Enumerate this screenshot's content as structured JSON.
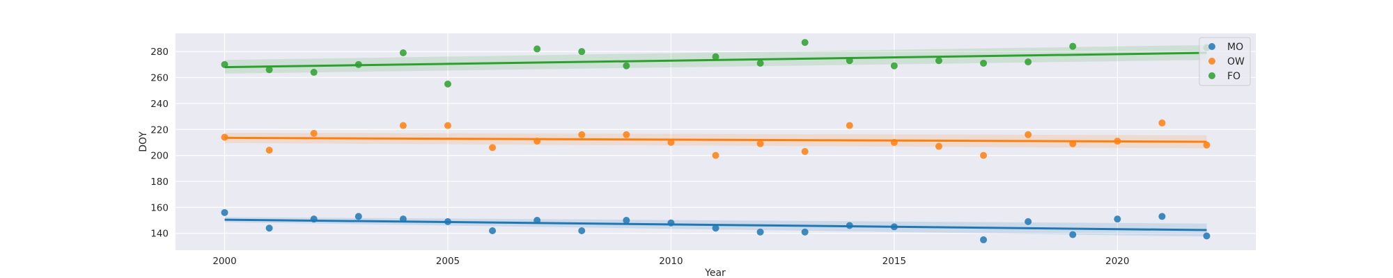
{
  "chart_data": {
    "type": "scatter",
    "xlabel": "Year",
    "ylabel": "DOY",
    "xlim": [
      1998.9,
      2023.1
    ],
    "ylim": [
      127,
      294
    ],
    "xticks": [
      2000,
      2005,
      2010,
      2015,
      2020
    ],
    "yticks": [
      140,
      160,
      180,
      200,
      220,
      240,
      260,
      280
    ],
    "grid": true,
    "legend_position": "top-right",
    "x": [
      2000,
      2001,
      2002,
      2003,
      2004,
      2005,
      2006,
      2007,
      2008,
      2009,
      2010,
      2011,
      2012,
      2013,
      2014,
      2015,
      2016,
      2017,
      2018,
      2019,
      2020,
      2021,
      2022
    ],
    "series": [
      {
        "name": "MO",
        "color": "#1f77b4",
        "points": [
          [
            2000,
            156
          ],
          [
            2001,
            144
          ],
          [
            2002,
            151
          ],
          [
            2003,
            153
          ],
          [
            2004,
            151
          ],
          [
            2005,
            149
          ],
          [
            2006,
            142
          ],
          [
            2007,
            150
          ],
          [
            2008,
            142
          ],
          [
            2009,
            150
          ],
          [
            2010,
            148
          ],
          [
            2011,
            144
          ],
          [
            2012,
            141
          ],
          [
            2013,
            141
          ],
          [
            2014,
            146
          ],
          [
            2015,
            145
          ],
          [
            2016,
            null
          ],
          [
            2017,
            135
          ],
          [
            2018,
            149
          ],
          [
            2019,
            139
          ],
          [
            2020,
            151
          ],
          [
            2021,
            153
          ],
          [
            2022,
            138
          ]
        ],
        "trend": [
          150.5,
          142.5
        ],
        "band": [
          [
            152.5,
            148.5
          ],
          [
            147.5,
            137.5
          ]
        ]
      },
      {
        "name": "OW",
        "color": "#ff7f0e",
        "points": [
          [
            2000,
            214
          ],
          [
            2001,
            204
          ],
          [
            2002,
            217
          ],
          [
            2003,
            null
          ],
          [
            2004,
            223
          ],
          [
            2005,
            223
          ],
          [
            2006,
            206
          ],
          [
            2007,
            211
          ],
          [
            2008,
            216
          ],
          [
            2009,
            216
          ],
          [
            2010,
            210
          ],
          [
            2011,
            200
          ],
          [
            2012,
            209
          ],
          [
            2013,
            203
          ],
          [
            2014,
            223
          ],
          [
            2015,
            210
          ],
          [
            2016,
            207
          ],
          [
            2017,
            200
          ],
          [
            2018,
            216
          ],
          [
            2019,
            209
          ],
          [
            2020,
            211
          ],
          [
            2021,
            225
          ],
          [
            2022,
            208
          ]
        ],
        "trend": [
          213.5,
          210.5
        ],
        "band": [
          [
            217.5,
            209.5
          ],
          [
            215.5,
            205.5
          ]
        ]
      },
      {
        "name": "FO",
        "color": "#2ca02c",
        "points": [
          [
            2000,
            270
          ],
          [
            2001,
            266
          ],
          [
            2002,
            264
          ],
          [
            2003,
            270
          ],
          [
            2004,
            279
          ],
          [
            2005,
            255
          ],
          [
            2006,
            null
          ],
          [
            2007,
            282
          ],
          [
            2008,
            280
          ],
          [
            2009,
            269
          ],
          [
            2010,
            null
          ],
          [
            2011,
            276
          ],
          [
            2012,
            271
          ],
          [
            2013,
            287
          ],
          [
            2014,
            273
          ],
          [
            2015,
            269
          ],
          [
            2016,
            273
          ],
          [
            2017,
            271
          ],
          [
            2018,
            272
          ],
          [
            2019,
            284
          ],
          [
            2020,
            null
          ],
          [
            2021,
            null
          ],
          [
            2022,
            283
          ]
        ],
        "trend": [
          268,
          279
        ],
        "band": [
          [
            273.5,
            263
          ],
          [
            285,
            273.5
          ]
        ]
      }
    ]
  }
}
